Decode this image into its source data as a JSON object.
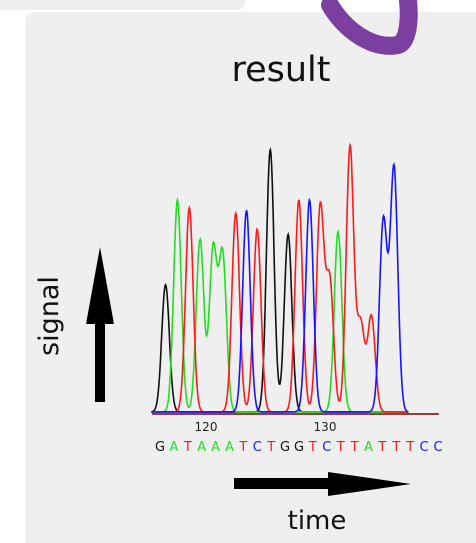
{
  "title": "result",
  "ylabel": "signal",
  "xlabel": "time",
  "colors": {
    "panel_bg": "#efefef",
    "A": "#22dd22",
    "C": "#1515ff",
    "G": "#111111",
    "T": "#ff1a1a",
    "accent_brush": "#7b3fa0"
  },
  "icons": {
    "y_arrow": "arrow-up-icon",
    "x_arrow": "arrow-right-icon",
    "brush": "brush-stroke-icon"
  },
  "chart_data": {
    "type": "line",
    "title": "",
    "xlabel": "",
    "ylabel": "",
    "x_ticks": [
      120,
      130
    ],
    "bases": [
      "G",
      "A",
      "T",
      "A",
      "A",
      "A",
      "T",
      "C",
      "T",
      "G",
      "G",
      "T",
      "C",
      "T",
      "T",
      "A",
      "T",
      "T",
      "T",
      "C",
      "C"
    ],
    "series": [
      {
        "name": "G",
        "peaks": [
          {
            "x": 116.6,
            "h": 0.48
          },
          {
            "x": 125.4,
            "h": 0.99
          },
          {
            "x": 126.9,
            "h": 0.67
          }
        ]
      },
      {
        "name": "A",
        "peaks": [
          {
            "x": 117.6,
            "h": 0.8
          },
          {
            "x": 119.5,
            "h": 0.65
          },
          {
            "x": 120.6,
            "h": 0.61
          },
          {
            "x": 121.4,
            "h": 0.59
          },
          {
            "x": 131.1,
            "h": 0.68
          }
        ]
      },
      {
        "name": "T",
        "peaks": [
          {
            "x": 118.6,
            "h": 0.77
          },
          {
            "x": 122.5,
            "h": 0.75
          },
          {
            "x": 124.3,
            "h": 0.69
          },
          {
            "x": 127.8,
            "h": 0.8
          },
          {
            "x": 129.6,
            "h": 0.77
          },
          {
            "x": 130.4,
            "h": 0.49
          },
          {
            "x": 132.1,
            "h": 1.0
          },
          {
            "x": 133.0,
            "h": 0.33
          },
          {
            "x": 133.9,
            "h": 0.36
          }
        ]
      },
      {
        "name": "C",
        "peaks": [
          {
            "x": 123.4,
            "h": 0.76
          },
          {
            "x": 128.7,
            "h": 0.8
          },
          {
            "x": 134.9,
            "h": 0.72
          },
          {
            "x": 135.8,
            "h": 0.92
          }
        ]
      }
    ]
  }
}
